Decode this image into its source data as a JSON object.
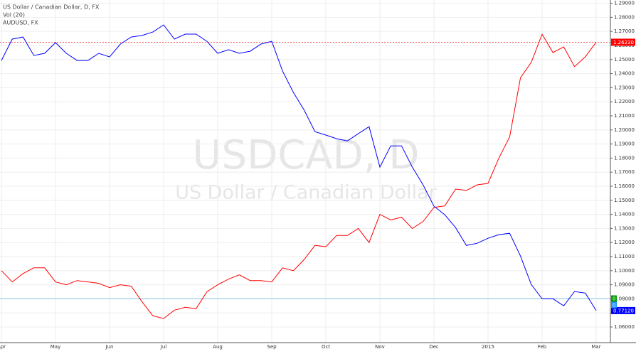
{
  "chart_data": {
    "type": "line",
    "watermark": "USDCAD, D",
    "watermark_subtitle": "US Dollar / Canadian Dollar",
    "categories": [
      "Apr",
      null,
      null,
      null,
      null,
      "May",
      null,
      null,
      null,
      null,
      "Jun",
      null,
      null,
      null,
      null,
      "Jul",
      null,
      null,
      null,
      null,
      "Aug",
      null,
      null,
      null,
      null,
      "Sep",
      null,
      null,
      null,
      null,
      "Oct",
      null,
      null,
      null,
      null,
      "Nov",
      null,
      null,
      null,
      null,
      "Dec",
      null,
      null,
      null,
      null,
      "2015",
      null,
      null,
      null,
      null,
      "Feb",
      null,
      null,
      null,
      null,
      "Mar"
    ],
    "series": [
      {
        "name": "US Dollar / Canadian Dollar, D, FX",
        "color": "#ff0000",
        "last_label": "1.26230",
        "values": [
          1.1,
          1.092,
          1.098,
          1.102,
          1.102,
          1.092,
          1.09,
          1.093,
          1.092,
          1.091,
          1.088,
          1.09,
          1.089,
          1.078,
          1.068,
          1.066,
          1.072,
          1.074,
          1.073,
          1.085,
          1.09,
          1.094,
          1.097,
          1.093,
          1.093,
          1.092,
          1.102,
          1.1,
          1.108,
          1.118,
          1.117,
          1.125,
          1.125,
          1.13,
          1.12,
          1.14,
          1.136,
          1.138,
          1.13,
          1.135,
          1.145,
          1.146,
          1.158,
          1.157,
          1.161,
          1.162,
          1.18,
          1.195,
          1.237,
          1.248,
          1.268,
          1.255,
          1.259,
          1.245,
          1.252,
          1.2623
        ]
      },
      {
        "name": "AUDUSD, FX",
        "color": "#0000ff",
        "axis": "y2",
        "last_label": "0.77120",
        "values": [
          0.9171,
          0.9296,
          0.9308,
          0.92,
          0.9213,
          0.9275,
          0.9213,
          0.9171,
          0.9171,
          0.9213,
          0.9192,
          0.9267,
          0.9308,
          0.9317,
          0.9337,
          0.9379,
          0.9296,
          0.9325,
          0.9325,
          0.9283,
          0.9213,
          0.9234,
          0.9213,
          0.9225,
          0.9267,
          0.9283,
          0.9109,
          0.8985,
          0.8881,
          0.8756,
          0.8736,
          0.8715,
          0.8702,
          0.8744,
          0.8785,
          0.8549,
          0.8673,
          0.8673,
          0.8549,
          0.8445,
          0.8321,
          0.8271,
          0.8196,
          0.8092,
          0.8105,
          0.8134,
          0.8155,
          0.8163,
          0.803,
          0.7864,
          0.7781,
          0.7781,
          0.774,
          0.7823,
          0.7814,
          0.7712
        ]
      }
    ],
    "volume": {
      "name": "Vol (20)",
      "value": 0,
      "average": 0
    },
    "ylim": [
      1.0489,
      1.2923
    ],
    "y2lim": [
      0.7525,
      0.9524
    ],
    "yticks": [
      {
        "value": 1.06,
        "label": "1.06000"
      },
      {
        "value": 1.07,
        "label": "1.07000"
      },
      {
        "value": 1.08,
        "label": "1.08000"
      },
      {
        "value": 1.09,
        "label": "1.09000"
      },
      {
        "value": 1.1,
        "label": "1.10000"
      },
      {
        "value": 1.11,
        "label": "1.11000"
      },
      {
        "value": 1.12,
        "label": "1.12000"
      },
      {
        "value": 1.13,
        "label": "1.13000"
      },
      {
        "value": 1.14,
        "label": "1.14000"
      },
      {
        "value": 1.15,
        "label": "1.15000"
      },
      {
        "value": 1.16,
        "label": "1.16000"
      },
      {
        "value": 1.17,
        "label": "1.17000"
      },
      {
        "value": 1.18,
        "label": "1.18000"
      },
      {
        "value": 1.19,
        "label": "1.19000"
      },
      {
        "value": 1.2,
        "label": "1.20000"
      },
      {
        "value": 1.21,
        "label": "1.21000"
      },
      {
        "value": 1.22,
        "label": "1.22000"
      },
      {
        "value": 1.23,
        "label": "1.23000"
      },
      {
        "value": 1.24,
        "label": "1.24000"
      },
      {
        "value": 1.25,
        "label": "1.25000"
      },
      {
        "value": 1.26,
        "label": "1.26000"
      },
      {
        "value": 1.27,
        "label": "1.27000"
      },
      {
        "value": 1.28,
        "label": "1.28000"
      },
      {
        "value": 1.29,
        "label": "1.29000"
      }
    ],
    "grid": true
  }
}
